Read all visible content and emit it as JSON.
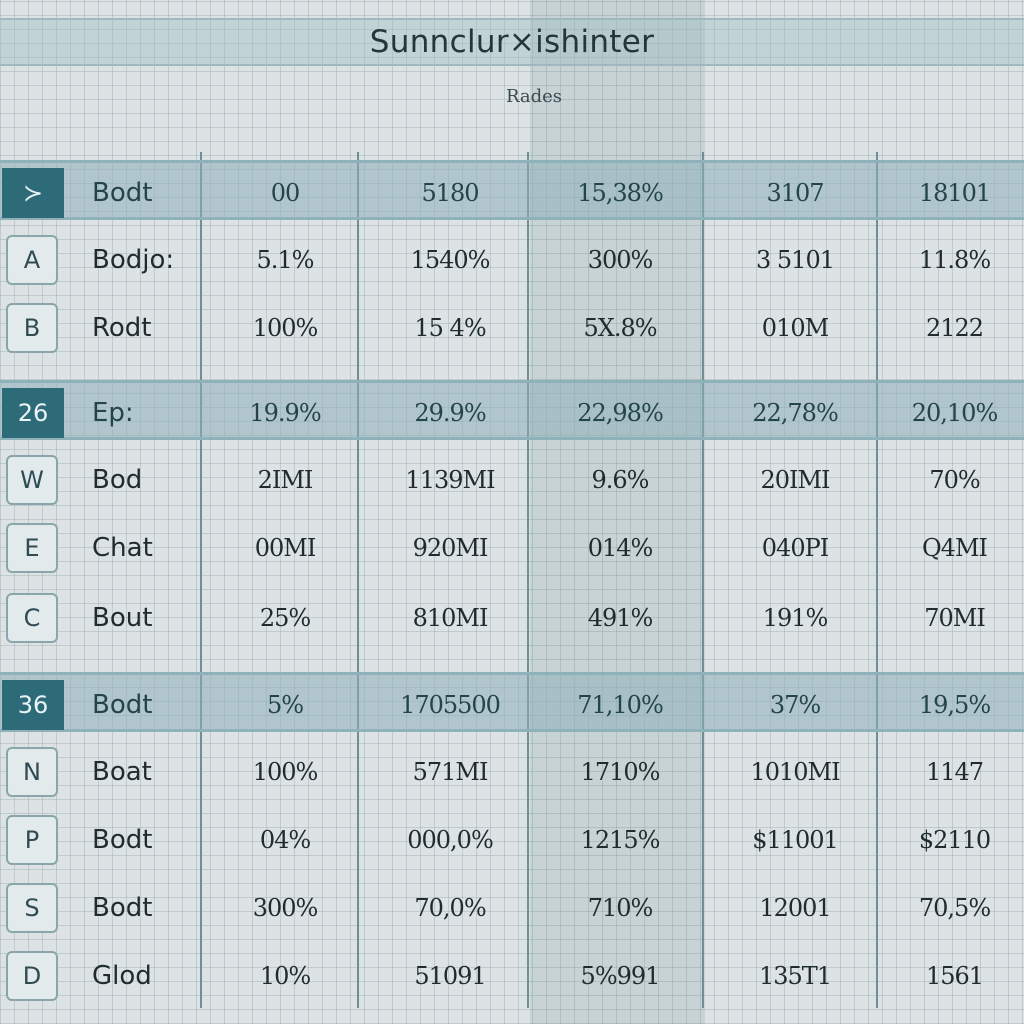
{
  "header": {
    "title": "Sunnclur×ishinter",
    "subtitle": "Rades"
  },
  "rows": [
    {
      "badge": "≻",
      "badge_style": "dark",
      "label": "Bodt",
      "values": [
        "00",
        "5180",
        "15,38%",
        "3107",
        "18101"
      ],
      "highlight": true
    },
    {
      "badge": "A",
      "badge_style": "light",
      "label": "Bodjo:",
      "values": [
        "5.1%",
        "1540%",
        "300%",
        "3 5101",
        "11.8%"
      ],
      "highlight": false
    },
    {
      "badge": "B",
      "badge_style": "light",
      "label": "Rodt",
      "values": [
        "100%",
        "15 4%",
        "5X.8%",
        "010M",
        "2122"
      ],
      "highlight": false
    },
    {
      "badge": "26",
      "badge_style": "dark",
      "label": "Ep:",
      "values": [
        "19.9%",
        "29.9%",
        "22,98%",
        "22,78%",
        "20,10%"
      ],
      "highlight": true
    },
    {
      "badge": "W",
      "badge_style": "light",
      "label": "Bod",
      "values": [
        "2IMI",
        "1139MI",
        "9.6%",
        "20IMI",
        "70%"
      ],
      "highlight": false
    },
    {
      "badge": "E",
      "badge_style": "light",
      "label": "Chat",
      "values": [
        "00MI",
        "920MI",
        "014%",
        "040PI",
        "Q4MI"
      ],
      "highlight": false
    },
    {
      "badge": "C",
      "badge_style": "light",
      "label": "Bout",
      "values": [
        "25%",
        "810MI",
        "491%",
        "191%",
        "70MI"
      ],
      "highlight": false
    },
    {
      "badge": "36",
      "badge_style": "dark",
      "label": "Bodt",
      "values": [
        "5%",
        "1705500",
        "71,10%",
        "37%",
        "19,5%"
      ],
      "highlight": true
    },
    {
      "badge": "N",
      "badge_style": "light",
      "label": "Boat",
      "values": [
        "100%",
        "571MI",
        "1710%",
        "1010MI",
        "1147"
      ],
      "highlight": false
    },
    {
      "badge": "P",
      "badge_style": "light",
      "label": "Bodt",
      "values": [
        "04%",
        "000,0%",
        "1215%",
        "$11001",
        "$2110"
      ],
      "highlight": false
    },
    {
      "badge": "S",
      "badge_style": "light",
      "label": "Bodt",
      "values": [
        "300%",
        "70,0%",
        "710%",
        "12001",
        "70,5%"
      ],
      "highlight": false
    },
    {
      "badge": "D",
      "badge_style": "light",
      "label": "Glod",
      "values": [
        "10%",
        "51091",
        "5%991",
        "135T1",
        "1561"
      ],
      "highlight": false
    }
  ],
  "colors": {
    "accent_dark": "#2e6b78",
    "band": "#8cafb8",
    "grid": "#6f8f97",
    "background": "#dde3e4"
  }
}
